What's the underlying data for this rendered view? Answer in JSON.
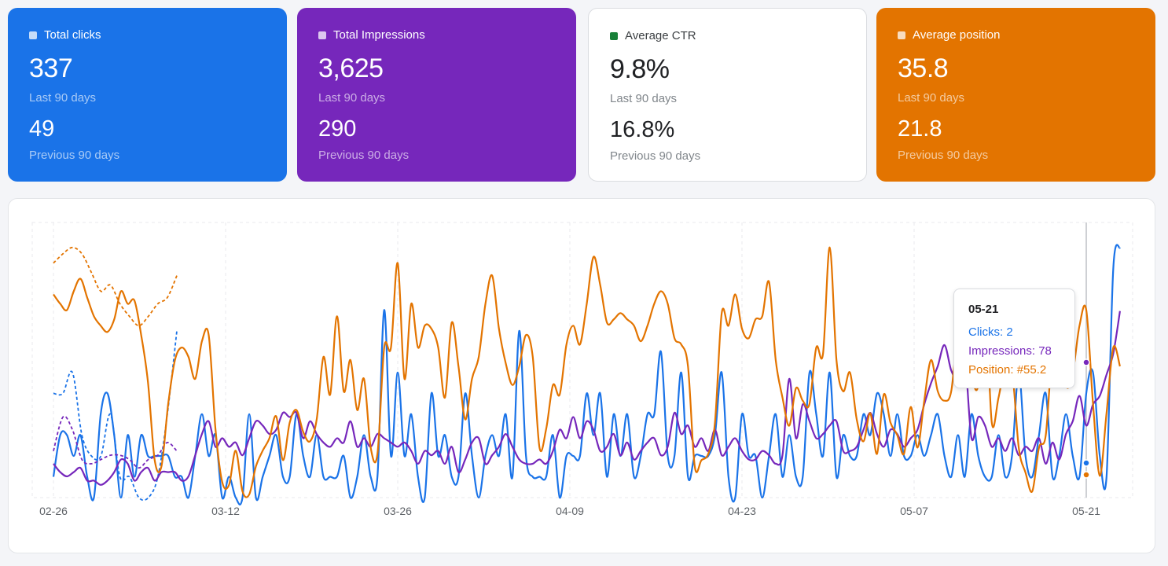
{
  "cards": [
    {
      "title": "Total clicks",
      "value": "337",
      "label1": "Last 90 days",
      "prev": "49",
      "label2": "Previous 90 days",
      "color": "#1a73e8"
    },
    {
      "title": "Total Impressions",
      "value": "3,625",
      "label1": "Last 90 days",
      "prev": "290",
      "label2": "Previous 90 days",
      "color": "#7627bb"
    },
    {
      "title": "Average CTR",
      "value": "9.8%",
      "label1": "Last 90 days",
      "prev": "16.8%",
      "label2": "Previous 90 days",
      "color": "#188038"
    },
    {
      "title": "Average position",
      "value": "35.8",
      "label1": "Last 90 days",
      "prev": "21.8",
      "label2": "Previous 90 days",
      "color": "#e37400"
    }
  ],
  "tooltip": {
    "date": "05-21",
    "clicks": "Clicks: 2",
    "impressions": "Impressions: 78",
    "position": "Position: #55.2"
  },
  "chart_data": {
    "type": "line",
    "x_ticks": [
      "02-26",
      "03-12",
      "03-26",
      "04-09",
      "04-23",
      "05-07",
      "05-21"
    ],
    "grid": true,
    "series": [
      {
        "name": "Clicks",
        "color": "#1a73e8",
        "values": [
          1,
          3,
          3,
          2,
          3,
          1,
          0,
          4,
          5,
          3,
          0,
          3,
          1,
          3,
          2,
          2,
          2,
          2,
          1,
          1,
          0,
          2,
          4,
          2,
          3,
          0,
          1,
          0,
          0,
          4,
          0,
          1,
          2,
          3,
          1,
          1,
          4,
          2,
          1,
          3,
          1,
          1,
          1,
          2,
          0,
          1,
          3,
          1,
          1,
          9,
          2,
          6,
          2,
          4,
          1,
          0,
          5,
          2,
          3,
          1,
          1,
          5,
          2,
          0,
          2,
          3,
          2,
          4,
          1,
          8,
          2,
          1,
          1,
          1,
          3,
          0,
          2,
          2,
          2,
          5,
          3,
          5,
          1,
          4,
          2,
          4,
          1,
          2,
          4,
          4,
          7,
          2,
          2,
          6,
          1,
          2,
          2,
          2,
          3,
          6,
          1,
          0,
          4,
          2,
          2,
          0,
          2,
          4,
          1,
          3,
          1,
          1,
          6,
          4,
          2,
          6,
          1,
          3,
          2,
          2,
          4,
          3,
          5,
          4,
          2,
          4,
          2,
          2,
          3,
          2,
          3,
          4,
          2,
          1,
          3,
          1,
          4,
          2,
          1,
          1,
          3,
          1,
          2,
          6,
          2,
          1,
          3,
          5,
          1,
          2,
          4,
          2,
          1,
          5,
          6,
          2,
          1,
          11,
          12,
          10,
          6,
          2,
          2,
          2,
          4,
          5
        ],
        "dashed": [
          5,
          5,
          6,
          3,
          2,
          2,
          4,
          1,
          1,
          0,
          0,
          1,
          4,
          8
        ]
      },
      {
        "name": "Impressions",
        "color": "#7627bb",
        "values": [
          8,
          6,
          5,
          6,
          7,
          4,
          4,
          3,
          4,
          6,
          9,
          8,
          4,
          6,
          7,
          4,
          6,
          6,
          6,
          4,
          5,
          10,
          15,
          18,
          12,
          14,
          12,
          13,
          10,
          14,
          18,
          17,
          15,
          16,
          20,
          19,
          20,
          14,
          18,
          15,
          13,
          12,
          14,
          13,
          18,
          12,
          14,
          12,
          15,
          14,
          13,
          12,
          13,
          11,
          8,
          11,
          10,
          11,
          8,
          12,
          6,
          9,
          13,
          14,
          8,
          10,
          12,
          15,
          12,
          9,
          8,
          8,
          9,
          8,
          11,
          16,
          14,
          19,
          14,
          18,
          16,
          11,
          12,
          15,
          10,
          13,
          9,
          11,
          13,
          14,
          10,
          12,
          20,
          15,
          17,
          12,
          14,
          11,
          16,
          10,
          12,
          14,
          11,
          9,
          9,
          11,
          10,
          8,
          10,
          28,
          14,
          22,
          18,
          14,
          15,
          17,
          18,
          11,
          11,
          12,
          16,
          20,
          15,
          12,
          16,
          15,
          12,
          14,
          16,
          22,
          27,
          31,
          36,
          30,
          28,
          33,
          14,
          19,
          17,
          12,
          14,
          11,
          14,
          10,
          12,
          11,
          14,
          8,
          13,
          9,
          15,
          18,
          24,
          17,
          22,
          24,
          29,
          34,
          44,
          52,
          59,
          52,
          30,
          31,
          27,
          30
        ],
        "dashed": [
          11,
          19,
          16,
          9,
          8,
          9,
          10,
          10,
          9,
          7,
          9,
          10,
          13,
          11
        ]
      },
      {
        "name": "Position",
        "color": "#e37400",
        "values": [
          65,
          62,
          60,
          66,
          70,
          64,
          58,
          55,
          53,
          57,
          66,
          62,
          63,
          52,
          37,
          12,
          10,
          30,
          44,
          48,
          45,
          38,
          50,
          52,
          22,
          5,
          4,
          15,
          2,
          1,
          10,
          15,
          19,
          26,
          12,
          24,
          28,
          21,
          18,
          25,
          45,
          33,
          58,
          34,
          44,
          28,
          38,
          16,
          14,
          48,
          48,
          75,
          38,
          62,
          48,
          55,
          54,
          48,
          32,
          56,
          42,
          25,
          38,
          45,
          62,
          71,
          54,
          43,
          36,
          42,
          52,
          45,
          16,
          22,
          36,
          33,
          49,
          55,
          49,
          62,
          77,
          68,
          56,
          57,
          59,
          57,
          55,
          50,
          55,
          62,
          66,
          62,
          51,
          49,
          42,
          10,
          12,
          14,
          24,
          59,
          55,
          65,
          54,
          51,
          57,
          58,
          69,
          44,
          32,
          23,
          35,
          31,
          30,
          48,
          46,
          80,
          44,
          34,
          40,
          25,
          18,
          27,
          14,
          33,
          24,
          20,
          14,
          29,
          16,
          31,
          44,
          34,
          31,
          34,
          53,
          51,
          39,
          36,
          64,
          24,
          32,
          42,
          41,
          16,
          8,
          2,
          16,
          20,
          48,
          56,
          36,
          40,
          55,
          60,
          30,
          7,
          27,
          48,
          42,
          40,
          30,
          8,
          8,
          25,
          16,
          30
        ],
        "dashed": [
          75,
          78,
          80,
          78,
          72,
          66,
          68,
          62,
          58,
          55,
          58,
          62,
          64,
          71
        ]
      }
    ]
  }
}
